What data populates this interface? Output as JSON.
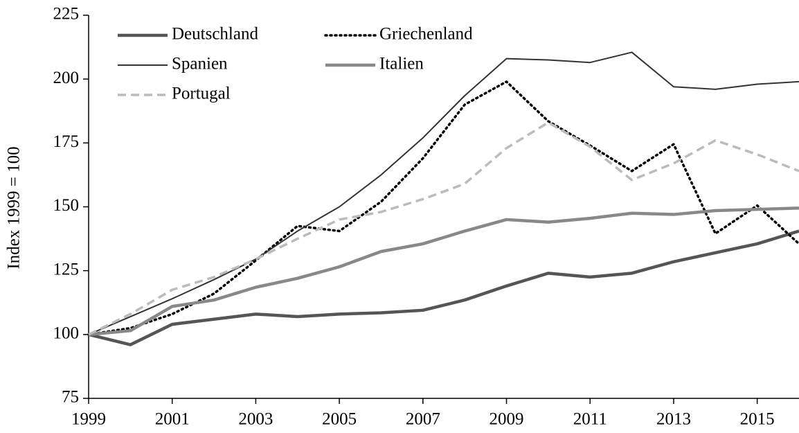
{
  "chart_data": {
    "type": "line",
    "ylabel": "Index  1999 = 100",
    "x": [
      1999,
      2000,
      2001,
      2002,
      2003,
      2004,
      2005,
      2006,
      2007,
      2008,
      2009,
      2010,
      2011,
      2012,
      2013,
      2014,
      2015,
      2016
    ],
    "series": [
      {
        "name": "Deutschland",
        "color": "#555555",
        "dash": "solid",
        "weight": "thick",
        "values": [
          100,
          96,
          104,
          106,
          108,
          107,
          108,
          108.5,
          109.5,
          113.5,
          119,
          124,
          122.5,
          124,
          128.5,
          132,
          135.5,
          140.5
        ]
      },
      {
        "name": "Griechenland",
        "color": "#000000",
        "dash": "dotted",
        "weight": "medium",
        "values": [
          100,
          102.5,
          108,
          116,
          129,
          142.5,
          140.5,
          152,
          169,
          190,
          199,
          183.5,
          174,
          164,
          174.5,
          139.5,
          150.5,
          135.5
        ]
      },
      {
        "name": "Spanien",
        "color": "#333333",
        "dash": "solid",
        "weight": "thin",
        "values": [
          100,
          107,
          114,
          121.5,
          129.5,
          140.5,
          150,
          162.5,
          177,
          193.5,
          208,
          207.5,
          206.5,
          210.5,
          197,
          196,
          198,
          199
        ]
      },
      {
        "name": "Italien",
        "color": "#888888",
        "dash": "solid",
        "weight": "thick",
        "values": [
          100,
          101.5,
          111,
          113.5,
          118.5,
          122,
          126.5,
          132.5,
          135.5,
          140.5,
          145,
          144,
          145.5,
          147.5,
          147,
          148.5,
          149,
          149.5
        ]
      },
      {
        "name": "Portugal",
        "color": "#bbbbbb",
        "dash": "dashed",
        "weight": "medium",
        "values": [
          100,
          108,
          117.5,
          122.5,
          129.5,
          137.5,
          145,
          148,
          153,
          159,
          173,
          183,
          173.5,
          160.5,
          167,
          176,
          170.5,
          164
        ]
      }
    ],
    "xlim": [
      1999,
      2016
    ],
    "xticks": [
      1999,
      2001,
      2003,
      2005,
      2007,
      2009,
      2011,
      2013,
      2015
    ],
    "ylim": [
      75,
      225
    ],
    "yticks": [
      75,
      100,
      125,
      150,
      175,
      200,
      225
    ],
    "grid": false,
    "legend": "upper left"
  }
}
